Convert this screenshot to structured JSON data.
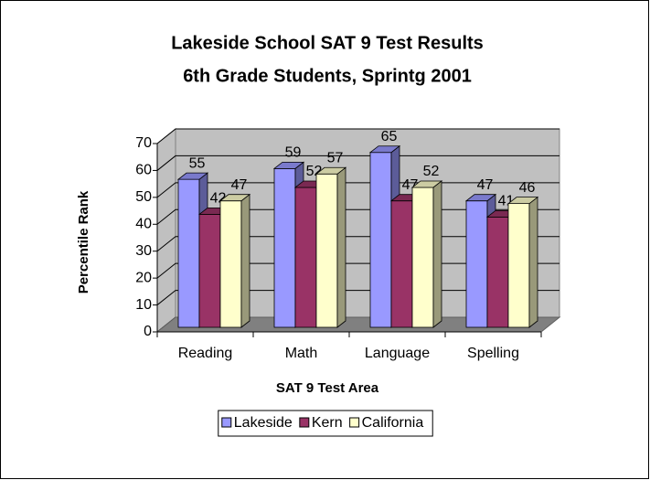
{
  "chart_data": {
    "type": "bar3d",
    "title": [
      "Lakeside School SAT 9 Test Results",
      "6th Grade Students, Sprintg 2001"
    ],
    "x_label": "SAT 9 Test Area",
    "y_label": "Percentile Rank",
    "categories": [
      "Reading",
      "Math",
      "Language",
      "Spelling"
    ],
    "series": [
      {
        "name": "Lakeside",
        "color": "#9999ff",
        "values": [
          55,
          59,
          65,
          47
        ]
      },
      {
        "name": "Kern",
        "color": "#993366",
        "values": [
          42,
          52,
          47,
          41
        ]
      },
      {
        "name": "California",
        "color": "#ffffcc",
        "values": [
          47,
          57,
          52,
          46
        ]
      }
    ],
    "ylim": [
      0,
      70
    ],
    "yticks": [
      0,
      10,
      20,
      30,
      40,
      50,
      60,
      70
    ],
    "grid": true,
    "legend": "bottom"
  }
}
